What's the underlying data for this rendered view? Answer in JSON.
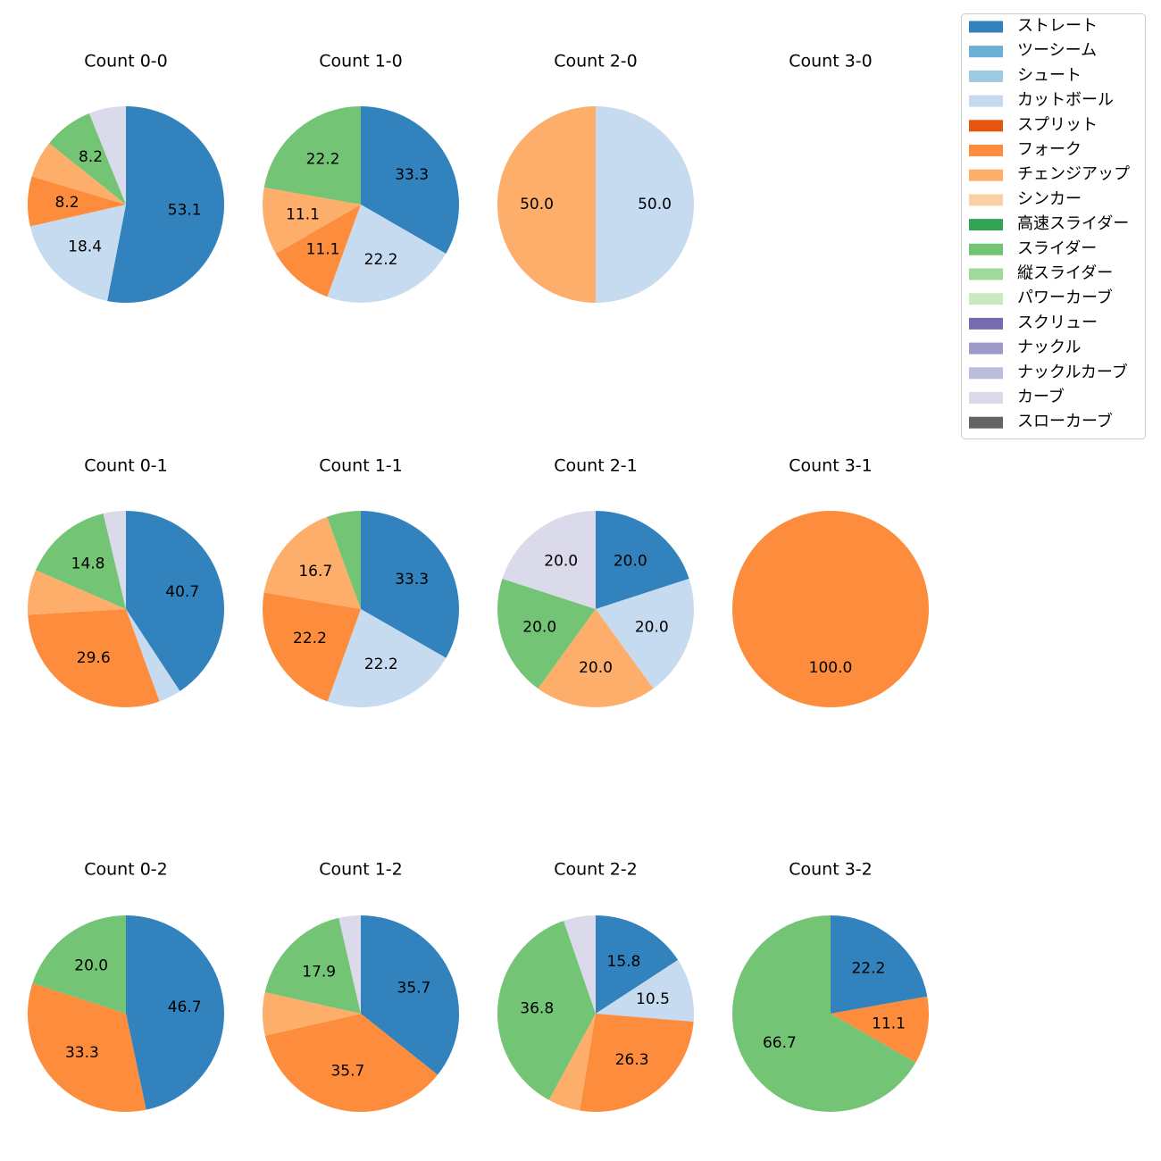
{
  "legend": {
    "location": "upper-right",
    "entries": [
      {
        "label": "ストレート",
        "color": "#3182bd"
      },
      {
        "label": "ツーシーム",
        "color": "#6baed6"
      },
      {
        "label": "シュート",
        "color": "#9ecae1"
      },
      {
        "label": "カットボール",
        "color": "#c6dbef"
      },
      {
        "label": "スプリット",
        "color": "#e6550d"
      },
      {
        "label": "フォーク",
        "color": "#fd8d3c"
      },
      {
        "label": "チェンジアップ",
        "color": "#fdae6b"
      },
      {
        "label": "シンカー",
        "color": "#fdd0a2"
      },
      {
        "label": "高速スライダー",
        "color": "#31a354"
      },
      {
        "label": "スライダー",
        "color": "#74c476"
      },
      {
        "label": "縦スライダー",
        "color": "#a1d99b"
      },
      {
        "label": "パワーカーブ",
        "color": "#c7e9c0"
      },
      {
        "label": "スクリュー",
        "color": "#756bb1"
      },
      {
        "label": "ナックル",
        "color": "#9e9ac8"
      },
      {
        "label": "ナックルカーブ",
        "color": "#bcbddc"
      },
      {
        "label": "カーブ",
        "color": "#dadaeb"
      },
      {
        "label": "スローカーブ",
        "color": "#636363"
      }
    ]
  },
  "chart_data": [
    {
      "type": "pie",
      "title": "Count 0-0",
      "slices": [
        {
          "category": "ストレート",
          "value": 53.1,
          "label": "53.1"
        },
        {
          "category": "カットボール",
          "value": 18.4,
          "label": "18.4"
        },
        {
          "category": "フォーク",
          "value": 8.2,
          "label": "8.2"
        },
        {
          "category": "チェンジアップ",
          "value": 6.1,
          "label": ""
        },
        {
          "category": "スライダー",
          "value": 8.2,
          "label": "8.2"
        },
        {
          "category": "カーブ",
          "value": 6.1,
          "label": ""
        }
      ]
    },
    {
      "type": "pie",
      "title": "Count 1-0",
      "slices": [
        {
          "category": "ストレート",
          "value": 33.3,
          "label": "33.3"
        },
        {
          "category": "カットボール",
          "value": 22.2,
          "label": "22.2"
        },
        {
          "category": "フォーク",
          "value": 11.1,
          "label": "11.1"
        },
        {
          "category": "チェンジアップ",
          "value": 11.1,
          "label": "11.1"
        },
        {
          "category": "スライダー",
          "value": 22.2,
          "label": "22.2"
        }
      ]
    },
    {
      "type": "pie",
      "title": "Count 2-0",
      "slices": [
        {
          "category": "カットボール",
          "value": 50.0,
          "label": "50.0"
        },
        {
          "category": "チェンジアップ",
          "value": 50.0,
          "label": "50.0"
        }
      ]
    },
    {
      "type": "pie",
      "title": "Count 3-0",
      "slices": []
    },
    {
      "type": "pie",
      "title": "Count 0-1",
      "slices": [
        {
          "category": "ストレート",
          "value": 40.7,
          "label": "40.7"
        },
        {
          "category": "カットボール",
          "value": 3.7,
          "label": ""
        },
        {
          "category": "フォーク",
          "value": 29.6,
          "label": "29.6"
        },
        {
          "category": "チェンジアップ",
          "value": 7.4,
          "label": ""
        },
        {
          "category": "スライダー",
          "value": 14.8,
          "label": "14.8"
        },
        {
          "category": "カーブ",
          "value": 3.7,
          "label": ""
        }
      ]
    },
    {
      "type": "pie",
      "title": "Count 1-1",
      "slices": [
        {
          "category": "ストレート",
          "value": 33.3,
          "label": "33.3"
        },
        {
          "category": "カットボール",
          "value": 22.2,
          "label": "22.2"
        },
        {
          "category": "フォーク",
          "value": 22.2,
          "label": "22.2"
        },
        {
          "category": "チェンジアップ",
          "value": 16.7,
          "label": "16.7"
        },
        {
          "category": "スライダー",
          "value": 5.6,
          "label": ""
        }
      ]
    },
    {
      "type": "pie",
      "title": "Count 2-1",
      "slices": [
        {
          "category": "ストレート",
          "value": 20.0,
          "label": "20.0"
        },
        {
          "category": "カットボール",
          "value": 20.0,
          "label": "20.0"
        },
        {
          "category": "チェンジアップ",
          "value": 20.0,
          "label": "20.0"
        },
        {
          "category": "スライダー",
          "value": 20.0,
          "label": "20.0"
        },
        {
          "category": "カーブ",
          "value": 20.0,
          "label": "20.0"
        }
      ]
    },
    {
      "type": "pie",
      "title": "Count 3-1",
      "slices": [
        {
          "category": "フォーク",
          "value": 100.0,
          "label": "100.0"
        }
      ]
    },
    {
      "type": "pie",
      "title": "Count 0-2",
      "slices": [
        {
          "category": "ストレート",
          "value": 46.7,
          "label": "46.7"
        },
        {
          "category": "フォーク",
          "value": 33.3,
          "label": "33.3"
        },
        {
          "category": "スライダー",
          "value": 20.0,
          "label": "20.0"
        }
      ]
    },
    {
      "type": "pie",
      "title": "Count 1-2",
      "slices": [
        {
          "category": "ストレート",
          "value": 35.7,
          "label": "35.7"
        },
        {
          "category": "フォーク",
          "value": 35.7,
          "label": "35.7"
        },
        {
          "category": "チェンジアップ",
          "value": 7.1,
          "label": ""
        },
        {
          "category": "スライダー",
          "value": 17.9,
          "label": "17.9"
        },
        {
          "category": "カーブ",
          "value": 3.6,
          "label": ""
        }
      ]
    },
    {
      "type": "pie",
      "title": "Count 2-2",
      "slices": [
        {
          "category": "ストレート",
          "value": 15.8,
          "label": "15.8"
        },
        {
          "category": "カットボール",
          "value": 10.5,
          "label": "10.5"
        },
        {
          "category": "フォーク",
          "value": 26.3,
          "label": "26.3"
        },
        {
          "category": "チェンジアップ",
          "value": 5.3,
          "label": ""
        },
        {
          "category": "スライダー",
          "value": 36.8,
          "label": "36.8"
        },
        {
          "category": "カーブ",
          "value": 5.3,
          "label": ""
        }
      ]
    },
    {
      "type": "pie",
      "title": "Count 3-2",
      "slices": [
        {
          "category": "ストレート",
          "value": 22.2,
          "label": "22.2"
        },
        {
          "category": "フォーク",
          "value": 11.1,
          "label": "11.1"
        },
        {
          "category": "スライダー",
          "value": 66.7,
          "label": "66.7"
        }
      ]
    }
  ]
}
